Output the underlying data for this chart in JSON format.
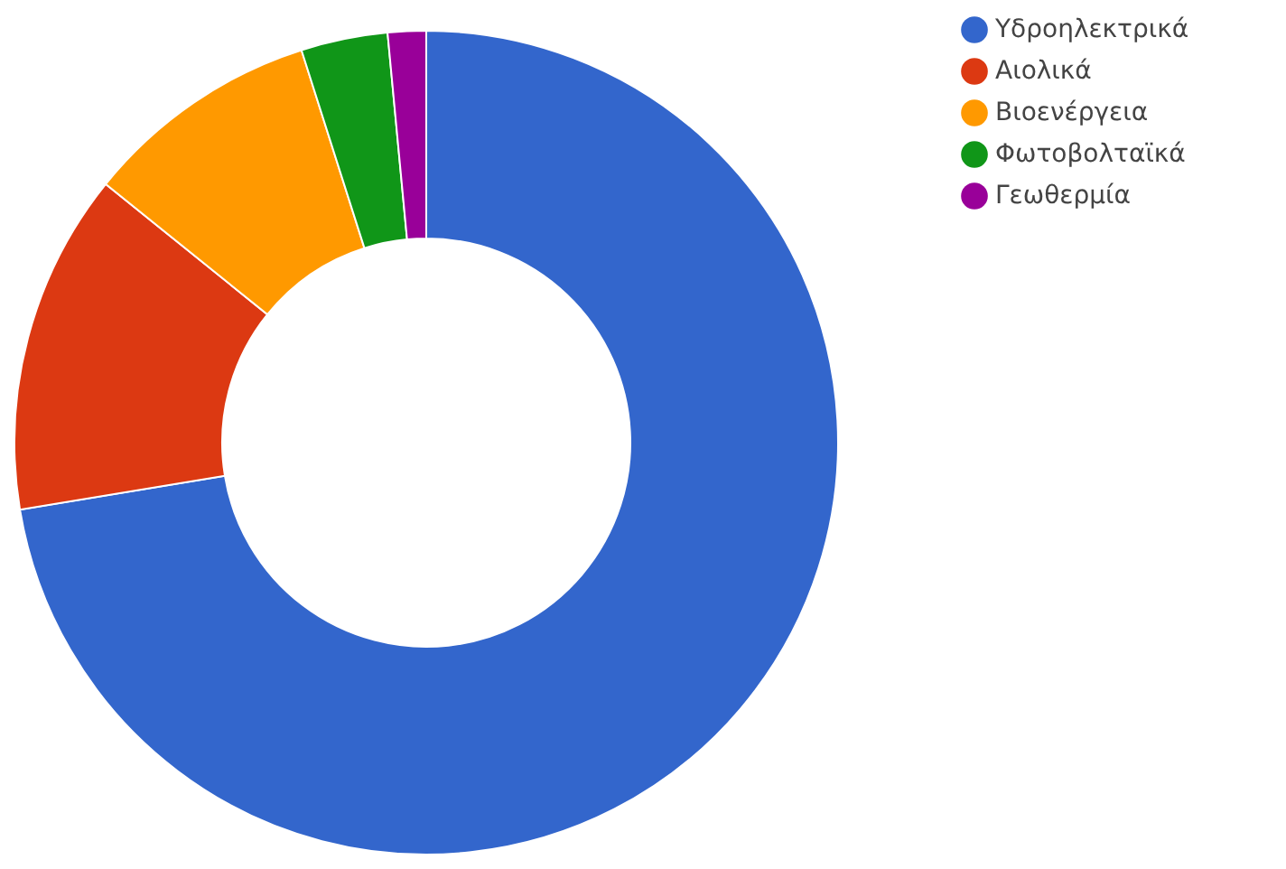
{
  "chart_data": {
    "type": "donut",
    "categories": [
      "Υδροηλεκτρικά",
      "Αιολικά",
      "Βιοενέργεια",
      "Φωτοβολταϊκά",
      "Γεωθερμία"
    ],
    "values": [
      72.4,
      13.4,
      9.3,
      3.4,
      1.5
    ],
    "colors": [
      "#3366cc",
      "#dc3912",
      "#ff9900",
      "#109618",
      "#990099"
    ],
    "legend": "right"
  }
}
